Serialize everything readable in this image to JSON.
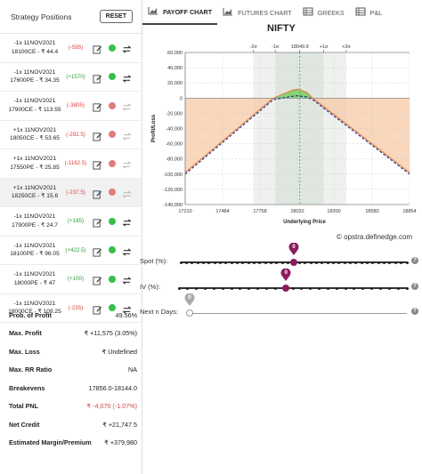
{
  "left_panel": {
    "title": "Strategy Positions",
    "reset_label": "RESET",
    "positions": [
      {
        "line1": "-1x 11NOV2021",
        "line2": "18100CE - ₹ 44.4",
        "pnl": "(-595)",
        "pnl_sign": "neg",
        "enabled": true
      },
      {
        "line1": "-1x 11NOV2021",
        "line2": "17600PE - ₹ 34.35",
        "pnl": "(+1570)",
        "pnl_sign": "pos",
        "enabled": true
      },
      {
        "line1": "-1x 11NOV2021",
        "line2": "17900CE - ₹ 113.55",
        "pnl": "(-3805)",
        "pnl_sign": "neg",
        "enabled": false
      },
      {
        "line1": "+1x 11NOV2021",
        "line2": "18050CE - ₹ 53.65",
        "pnl": "(-292.5)",
        "pnl_sign": "neg",
        "enabled": false
      },
      {
        "line1": "+1x 11NOV2021",
        "line2": "17550PE - ₹ 25.85",
        "pnl": "(-1162.5)",
        "pnl_sign": "neg",
        "enabled": false
      },
      {
        "line1": "+1x 11NOV2021",
        "line2": "18250CE - ₹ 15.6",
        "pnl": "(-237.5)",
        "pnl_sign": "neg",
        "enabled": false
      },
      {
        "line1": "-1x 11NOV2021",
        "line2": "17900PE - ₹ 24.7",
        "pnl": "(+165)",
        "pnl_sign": "pos",
        "enabled": true
      },
      {
        "line1": "-1x 11NOV2021",
        "line2": "18100PE - ₹ 96.05",
        "pnl": "(+422.5)",
        "pnl_sign": "pos",
        "enabled": true
      },
      {
        "line1": "-1x 11NOV2021",
        "line2": "18000PE - ₹ 47",
        "pnl": "(+100)",
        "pnl_sign": "pos",
        "enabled": true
      },
      {
        "line1": "-1x 11NOV2021",
        "line2": "18000CE - ₹ 109.25",
        "pnl": "(-235)",
        "pnl_sign": "neg",
        "enabled": true
      }
    ]
  },
  "stats": [
    {
      "label": "Prob. of Profit",
      "value": "49.56%",
      "tone": "normal"
    },
    {
      "label": "Max. Profit",
      "value": "₹ +11,575 (3.05%)",
      "tone": "normal"
    },
    {
      "label": "Max. Loss",
      "value": "₹ Undefined",
      "tone": "normal"
    },
    {
      "label": "Max. RR Ratio",
      "value": "NA",
      "tone": "normal"
    },
    {
      "label": "Breakevens",
      "value": "17856.0-18144.0",
      "tone": "normal"
    },
    {
      "label": "Total PNL",
      "value": "₹ -4,070 (-1.07%)",
      "tone": "neg"
    },
    {
      "label": "Net Credit",
      "value": "₹ +21,747.5",
      "tone": "normal"
    },
    {
      "label": "Estimated Margin/Premium",
      "value": "₹ +379,980",
      "tone": "normal"
    }
  ],
  "tabs": [
    {
      "label": "PAYOFF CHART",
      "icon": "area-chart-icon",
      "active": true
    },
    {
      "label": "FUTURES CHART",
      "icon": "area-chart-icon",
      "active": false
    },
    {
      "label": "GREEKS",
      "icon": "table-icon",
      "active": false
    },
    {
      "label": "P&L",
      "icon": "table-icon",
      "active": false
    }
  ],
  "chart_data": {
    "type": "line",
    "title": "NIFTY",
    "xlabel": "Underlying Price",
    "ylabel": "Profit/Loss",
    "xlim": [
      17210,
      18854
    ],
    "ylim": [
      -140000,
      60000
    ],
    "x_ticks": [
      17210,
      17484,
      17758,
      18032,
      18300,
      18580,
      18854
    ],
    "y_ticks": [
      60000,
      40000,
      20000,
      0,
      -20000,
      -40000,
      -60000,
      -80000,
      -100000,
      -120000,
      -140000
    ],
    "y_tick_labels": [
      "60,000",
      "40,000",
      "20,000",
      "0",
      "-20,000",
      "-40,000",
      "-60,000",
      "-80,000",
      "-100,000",
      "-120,000",
      "-140,000"
    ],
    "sigma_labels": [
      {
        "label": "-2σ",
        "x": 17710
      },
      {
        "label": "-1σ",
        "x": 17870
      },
      {
        "label": "18049.9",
        "x": 18050
      },
      {
        "label": "+1σ",
        "x": 18225
      },
      {
        "label": "+2σ",
        "x": 18390
      }
    ],
    "sigma_band_1": [
      17870,
      18225
    ],
    "sigma_band_2": [
      17710,
      18390
    ],
    "spot": 18049.9,
    "series": [
      {
        "values_x": [
          17210,
          17856,
          18000,
          18032,
          18050,
          18100,
          18144,
          18854
        ],
        "values_y": [
          -98000,
          0,
          10500,
          11575,
          11000,
          7500,
          0,
          -98000
        ],
        "color": "#e07b39"
      },
      {
        "values_x": [
          17210,
          17856,
          18000,
          18032,
          18100,
          18144,
          18854
        ],
        "values_y": [
          -100000,
          -2000,
          2500,
          3000,
          1500,
          -2000,
          -100000
        ],
        "color": "#1f2a8a",
        "dashed": true
      }
    ],
    "profit_color": "#6fcf5a",
    "loss_color": "#f6c9a6"
  },
  "watermark": "© opstra.definedge.com",
  "sliders": [
    {
      "label": "Spot (%):",
      "value": "0",
      "position": 0.5
    },
    {
      "label": "IV (%):",
      "value": "0",
      "position": 0.47
    },
    {
      "label": "Next n Days:",
      "value": "0",
      "position": 0.0
    }
  ],
  "colors": {
    "accent": "#8a1c5e",
    "pin": "#8a1c5e",
    "pin_light": "#aaaaaa"
  }
}
